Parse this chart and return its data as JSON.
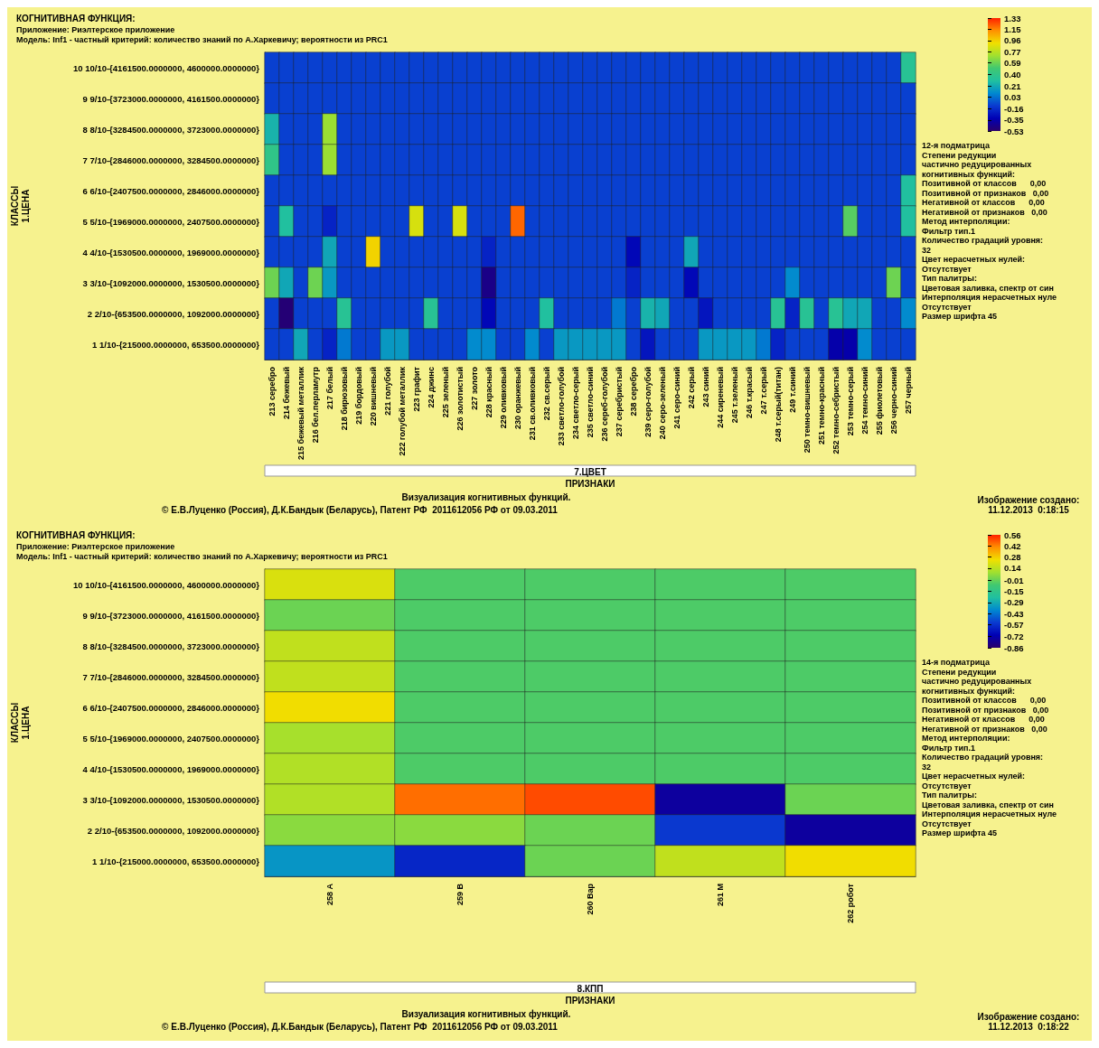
{
  "chart_data": [
    {
      "type": "heatmap",
      "title": "КОГНИТИВНАЯ ФУНКЦИЯ:",
      "subtitle": "Приложение: Риэлтерское приложение\nМодель: Inf1 - частный критерий: количество знаний по А.Харкевичу; вероятности из PRC1",
      "xlabel": "7.ЦВЕТ",
      "ylabel": "КЛАССЫ\n1.ЦЕНА",
      "categories": [
        "213 серебро",
        "214 бежевый",
        "215 бежевый металлик",
        "216 бел.перламутр",
        "217 белый",
        "218 бирюзовый",
        "219 бордовый",
        "220 вишневый",
        "221 голубой",
        "222 голубой металлик",
        "223 графит",
        "224 джинс",
        "225 зеленый",
        "226 золотистый",
        "227 золото",
        "228 красный",
        "229 оливковый",
        "230 оранжевый",
        "231 св.оливковый",
        "232 св.серый",
        "233 светло-голубой",
        "234 светло-серый",
        "235 светло-синий",
        "236 сереб-голубой",
        "237 серебристый",
        "238 серебро",
        "239 серо-голубой",
        "240 серо-зеленый",
        "241 серо-синий",
        "242 серый",
        "243 синий",
        "244 сиреневый",
        "245 т.зеленый",
        "246 т.красый",
        "247 т.серый",
        "248 т.серый(титан)",
        "249 т.синий",
        "250 темно-вишневый",
        "251 темно-красный",
        "252 темно-себристый",
        "253 темно-серый",
        "254 темно-синий",
        "255 фиолетовый",
        "256 черно-синий",
        "257 черный"
      ],
      "y_categories": [
        "10 10/10-{4161500.0000000, 4600000.0000000}",
        "9 9/10-{3723000.0000000, 4161500.0000000}",
        "8 8/10-{3284500.0000000, 3723000.0000000}",
        "7 7/10-{2846000.0000000, 3284500.0000000}",
        "6 6/10-{2407500.0000000, 2846000.0000000}",
        "5 5/10-{1969000.0000000, 2407500.0000000}",
        "4 4/10-{1530500.0000000, 1969000.0000000}",
        "3 3/10-{1092000.0000000, 1530500.0000000}",
        "2 2/10-{653500.0000000, 1092000.0000000}",
        "1 1/10-{215000.0000000, 653500.0000000}"
      ],
      "cells": [
        [
          -0.1,
          -0.1,
          -0.1,
          -0.1,
          -0.1,
          -0.1,
          -0.1,
          -0.1,
          -0.1,
          -0.1,
          -0.1,
          -0.1,
          -0.1,
          -0.1,
          -0.1,
          -0.1,
          -0.1,
          -0.1,
          -0.1,
          -0.1,
          -0.1,
          -0.1,
          -0.1,
          -0.1,
          -0.1,
          -0.1,
          -0.1,
          -0.1,
          -0.1,
          -0.1,
          -0.1,
          -0.1,
          -0.1,
          -0.1,
          -0.1,
          -0.1,
          -0.1,
          -0.1,
          -0.1,
          -0.1,
          -0.1,
          -0.1,
          -0.1,
          -0.1,
          0.35
        ],
        [
          -0.1,
          -0.1,
          -0.1,
          -0.1,
          -0.1,
          -0.1,
          -0.1,
          -0.1,
          -0.1,
          -0.1,
          -0.1,
          -0.1,
          -0.1,
          -0.1,
          -0.1,
          -0.1,
          -0.1,
          -0.1,
          -0.1,
          -0.1,
          -0.1,
          -0.1,
          -0.1,
          -0.1,
          -0.1,
          -0.1,
          -0.1,
          -0.1,
          -0.1,
          -0.1,
          -0.1,
          -0.1,
          -0.1,
          -0.1,
          -0.1,
          -0.1,
          -0.1,
          -0.1,
          -0.1,
          -0.1,
          -0.1,
          -0.1,
          -0.1,
          -0.1,
          -0.1
        ],
        [
          0.25,
          -0.1,
          -0.1,
          -0.1,
          0.7,
          -0.1,
          -0.1,
          -0.1,
          -0.1,
          -0.1,
          -0.1,
          -0.1,
          -0.1,
          -0.1,
          -0.1,
          -0.1,
          -0.1,
          -0.1,
          -0.1,
          -0.1,
          -0.1,
          -0.1,
          -0.1,
          -0.1,
          -0.1,
          -0.1,
          -0.1,
          -0.1,
          -0.1,
          -0.1,
          -0.1,
          -0.1,
          -0.1,
          -0.1,
          -0.1,
          -0.1,
          -0.1,
          -0.1,
          -0.1,
          -0.1,
          -0.1,
          -0.1,
          -0.1,
          -0.1,
          -0.1
        ],
        [
          0.4,
          -0.1,
          -0.1,
          -0.1,
          0.7,
          -0.1,
          -0.1,
          -0.1,
          -0.1,
          -0.1,
          -0.1,
          -0.1,
          -0.1,
          -0.1,
          -0.1,
          -0.1,
          -0.1,
          -0.1,
          -0.1,
          -0.1,
          -0.1,
          -0.1,
          -0.1,
          -0.1,
          -0.1,
          -0.1,
          -0.1,
          -0.1,
          -0.1,
          -0.1,
          -0.1,
          -0.1,
          -0.1,
          -0.1,
          -0.1,
          -0.1,
          -0.1,
          -0.1,
          -0.1,
          -0.1,
          -0.1,
          -0.1,
          -0.1,
          -0.1,
          -0.1
        ],
        [
          -0.1,
          -0.1,
          -0.1,
          -0.1,
          -0.1,
          -0.1,
          -0.1,
          -0.1,
          -0.1,
          -0.1,
          -0.1,
          -0.1,
          -0.1,
          -0.1,
          -0.1,
          -0.1,
          -0.1,
          -0.1,
          -0.1,
          -0.1,
          -0.1,
          -0.1,
          -0.1,
          -0.1,
          -0.1,
          -0.1,
          -0.1,
          -0.1,
          -0.1,
          -0.1,
          -0.1,
          -0.1,
          -0.1,
          -0.1,
          -0.1,
          -0.1,
          -0.1,
          -0.1,
          -0.1,
          -0.1,
          -0.1,
          -0.1,
          -0.1,
          -0.1,
          0.3
        ],
        [
          -0.1,
          0.3,
          -0.1,
          -0.1,
          -0.2,
          -0.1,
          -0.1,
          -0.1,
          -0.1,
          -0.1,
          0.85,
          -0.1,
          -0.1,
          0.85,
          -0.1,
          -0.1,
          -0.1,
          1.2,
          -0.1,
          -0.1,
          -0.1,
          -0.1,
          -0.1,
          -0.1,
          -0.1,
          -0.1,
          -0.1,
          -0.1,
          -0.1,
          -0.1,
          -0.1,
          -0.1,
          -0.1,
          -0.1,
          -0.1,
          -0.1,
          -0.1,
          -0.1,
          -0.1,
          -0.1,
          0.55,
          -0.1,
          -0.1,
          -0.1,
          0.3
        ],
        [
          -0.1,
          -0.1,
          -0.1,
          -0.1,
          0.2,
          -0.1,
          -0.1,
          0.95,
          -0.1,
          -0.1,
          -0.1,
          -0.1,
          -0.1,
          -0.1,
          -0.1,
          -0.2,
          -0.1,
          -0.1,
          -0.1,
          -0.1,
          -0.1,
          -0.1,
          -0.1,
          -0.1,
          -0.1,
          -0.3,
          -0.1,
          -0.1,
          -0.1,
          0.2,
          -0.1,
          -0.1,
          -0.1,
          -0.1,
          -0.1,
          -0.1,
          -0.1,
          -0.1,
          -0.1,
          -0.1,
          -0.1,
          -0.1,
          -0.1,
          -0.1,
          -0.1
        ],
        [
          0.6,
          0.2,
          -0.1,
          0.6,
          0.15,
          -0.1,
          -0.1,
          -0.1,
          -0.1,
          -0.1,
          -0.1,
          -0.1,
          -0.1,
          -0.1,
          -0.1,
          -0.45,
          -0.1,
          -0.1,
          -0.1,
          -0.1,
          -0.1,
          -0.1,
          -0.1,
          -0.1,
          -0.1,
          -0.2,
          -0.1,
          -0.1,
          -0.1,
          -0.3,
          -0.1,
          -0.1,
          -0.1,
          -0.1,
          -0.1,
          -0.1,
          0.1,
          -0.1,
          -0.1,
          -0.1,
          -0.1,
          -0.1,
          -0.1,
          0.6,
          -0.1
        ],
        [
          -0.1,
          -0.5,
          -0.1,
          -0.1,
          -0.1,
          0.35,
          -0.1,
          -0.1,
          -0.1,
          -0.1,
          -0.1,
          0.35,
          -0.1,
          -0.1,
          -0.1,
          -0.3,
          -0.1,
          -0.1,
          -0.1,
          0.3,
          -0.1,
          -0.1,
          -0.1,
          -0.1,
          0.05,
          -0.1,
          0.25,
          0.2,
          -0.1,
          -0.1,
          -0.25,
          -0.1,
          -0.1,
          -0.1,
          -0.1,
          0.35,
          -0.2,
          0.35,
          -0.1,
          0.35,
          0.2,
          0.2,
          -0.1,
          -0.1,
          0.1
        ],
        [
          -0.1,
          -0.1,
          0.2,
          -0.1,
          -0.2,
          0.05,
          -0.1,
          -0.1,
          0.15,
          0.15,
          -0.1,
          -0.1,
          -0.1,
          -0.1,
          0.1,
          0.1,
          -0.1,
          -0.1,
          0.1,
          -0.1,
          0.15,
          0.15,
          0.15,
          0.15,
          0.15,
          -0.1,
          -0.25,
          -0.1,
          -0.1,
          -0.1,
          0.15,
          0.15,
          0.15,
          0.15,
          0.05,
          -0.2,
          -0.1,
          -0.1,
          -0.1,
          -0.35,
          -0.35,
          0.1,
          -0.1,
          -0.1,
          -0.1
        ]
      ],
      "clim": [
        -0.53,
        1.33
      ],
      "cticks": [
        1.33,
        1.15,
        0.96,
        0.77,
        0.59,
        {
          "value": 0.4,
          "label": "0.40"
        },
        0.21,
        0.03,
        -0.16,
        -0.35,
        -0.53
      ],
      "annotations": [
        "ПРИЗНАКИ",
        "Визуализация когнитивных функций.",
        "© Е.В.Луценко (Россия), Д.К.Бандык (Беларусь), Патент РФ  2011612056 РФ от 09.03.2011",
        "Изображение создано:\n11.12.2013  0:18:15",
        "12-я подматрица\nСтепени редукции\nчастично редуцированных\nкогнитивных функций:\nПозитивной от классов      0,00\nПозитивной от признаков   0,00\nНегативной от классов      0,00\nНегативной от признаков   0,00\nМетод интерполяции:\nФильтр тип.1\nКоличество градаций уровня:\n32\nЦвет нерасчетных нулей:\nОтсутствует\nТип палитры:\nЦветовая заливка, спектр от син\nИнтерполяция нерасчетных нуле\nОтсутствует\nРазмер шрифта 45"
      ]
    },
    {
      "type": "heatmap",
      "title": "КОГНИТИВНАЯ ФУНКЦИЯ:",
      "subtitle": "Приложение: Риэлтерское приложение\nМодель: Inf1 - частный критерий: количество знаний по А.Харкевичу; вероятности из PRC1",
      "xlabel": "8.КПП",
      "ylabel": "КЛАССЫ\n1.ЦЕНА",
      "categories": [
        "258 А",
        "259 В",
        "260 Вар",
        "261 М",
        "262 робот"
      ],
      "y_categories": [
        "10 10/10-{4161500.0000000, 4600000.0000000}",
        "9 9/10-{3723000.0000000, 4161500.0000000}",
        "8 8/10-{3284500.0000000, 3723000.0000000}",
        "7 7/10-{2846000.0000000, 3284500.0000000}",
        "6 6/10-{2407500.0000000, 2846000.0000000}",
        "5 5/10-{1969000.0000000, 2407500.0000000}",
        "4 4/10-{1530500.0000000, 1969000.0000000}",
        "3 3/10-{1092000.0000000, 1530500.0000000}",
        "2 2/10-{653500.0000000, 1092000.0000000}",
        "1 1/10-{215000.0000000, 653500.0000000}"
      ],
      "cells": [
        [
          0.2,
          -0.05,
          -0.05,
          -0.05,
          -0.05
        ],
        [
          0.0,
          -0.05,
          -0.05,
          -0.05,
          -0.05
        ],
        [
          0.15,
          -0.05,
          -0.05,
          -0.05,
          -0.05
        ],
        [
          0.15,
          -0.05,
          -0.05,
          -0.05,
          -0.05
        ],
        [
          0.25,
          -0.05,
          -0.05,
          -0.05,
          -0.05
        ],
        [
          0.1,
          -0.05,
          -0.05,
          -0.05,
          -0.05
        ],
        [
          0.12,
          -0.05,
          -0.05,
          -0.05,
          -0.05
        ],
        [
          0.12,
          0.45,
          0.5,
          -0.75,
          0.0
        ],
        [
          0.05,
          0.05,
          0.0,
          -0.55,
          -0.75
        ],
        [
          -0.35,
          -0.6,
          0.0,
          0.15,
          0.25
        ]
      ],
      "clim": [
        -0.86,
        0.56
      ],
      "cticks": [
        0.56,
        0.42,
        0.28,
        0.14,
        -0.01,
        -0.15,
        -0.29,
        -0.43,
        -0.57,
        -0.72,
        -0.86
      ],
      "annotations": [
        "ПРИЗНАКИ",
        "Визуализация когнитивных функций.",
        "© Е.В.Луценко (Россия), Д.К.Бандык (Беларусь), Патент РФ  2011612056 РФ от 09.03.2011",
        "Изображение создано:\n11.12.2013  0:18:22",
        "14-я подматрица\nСтепени редукции\nчастично редуцированных\nкогнитивных функций:\nПозитивной от классов      0,00\nПозитивной от признаков   0,00\nНегативной от классов      0,00\nНегативной от признаков   0,00\nМетод интерполяции:\nФильтр тип.1\nКоличество градаций уровня:\n32\nЦвет нерасчетных нулей:\nОтсутствует\nТип палитры:\nЦветовая заливка, спектр от син\nИнтерполяция нерасчетных нуле\nОтсутствует\nРазмер шрифта 45"
      ]
    }
  ]
}
